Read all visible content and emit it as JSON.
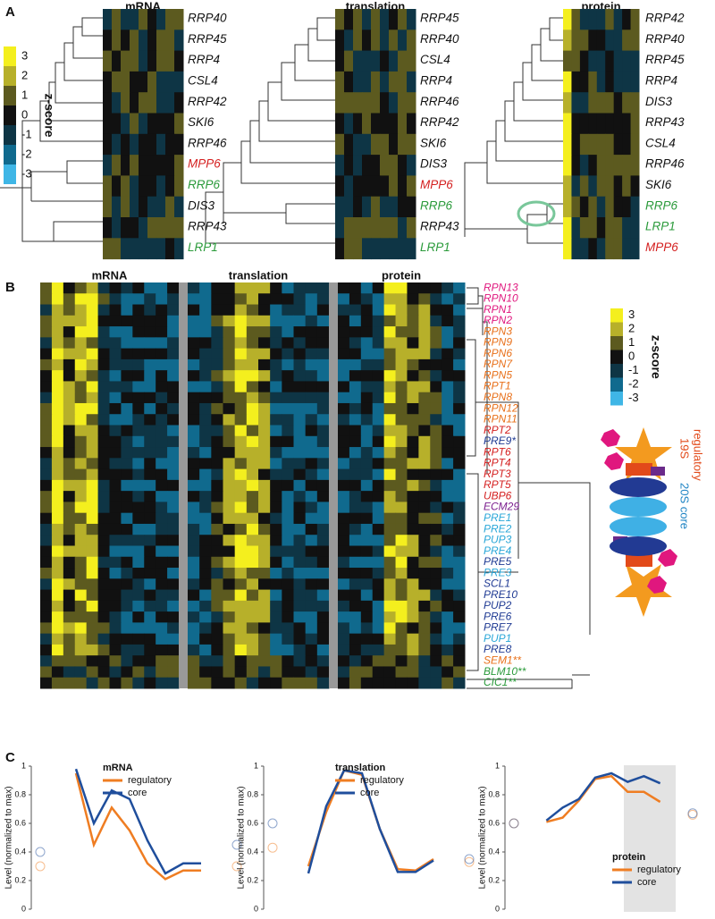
{
  "panel_a": {
    "label": "A",
    "colorbar": {
      "title": "z-score",
      "ticks": [
        3,
        2,
        1,
        0,
        -1,
        -2,
        -3
      ]
    },
    "heatmaps": [
      {
        "title": "mRNA",
        "genes": [
          {
            "label": "RRP40",
            "color": "#111111"
          },
          {
            "label": "RRP45",
            "color": "#111111"
          },
          {
            "label": "RRP4",
            "color": "#111111"
          },
          {
            "label": "CSL4",
            "color": "#111111"
          },
          {
            "label": "RRP42",
            "color": "#111111"
          },
          {
            "label": "SKI6",
            "color": "#111111"
          },
          {
            "label": "RRP46",
            "color": "#111111"
          },
          {
            "label": "MPP6",
            "color": "#d42020"
          },
          {
            "label": "RRP6",
            "color": "#2a9a3a"
          },
          {
            "label": "DIS3",
            "color": "#111111"
          },
          {
            "label": "RRP43",
            "color": "#111111"
          },
          {
            "label": "LRP1",
            "color": "#2a9a3a"
          }
        ]
      },
      {
        "title": "translation",
        "genes": [
          {
            "label": "RRP45",
            "color": "#111111"
          },
          {
            "label": "RRP40",
            "color": "#111111"
          },
          {
            "label": "CSL4",
            "color": "#111111"
          },
          {
            "label": "RRP4",
            "color": "#111111"
          },
          {
            "label": "RRP46",
            "color": "#111111"
          },
          {
            "label": "RRP42",
            "color": "#111111"
          },
          {
            "label": "SKI6",
            "color": "#111111"
          },
          {
            "label": "DIS3",
            "color": "#111111"
          },
          {
            "label": "MPP6",
            "color": "#d42020"
          },
          {
            "label": "RRP6",
            "color": "#2a9a3a"
          },
          {
            "label": "RRP43",
            "color": "#111111"
          },
          {
            "label": "LRP1",
            "color": "#2a9a3a"
          }
        ]
      },
      {
        "title": "protein",
        "genes": [
          {
            "label": "RRP42",
            "color": "#111111"
          },
          {
            "label": "RRP40",
            "color": "#111111"
          },
          {
            "label": "RRP45",
            "color": "#111111"
          },
          {
            "label": "RRP4",
            "color": "#111111"
          },
          {
            "label": "DIS3",
            "color": "#111111"
          },
          {
            "label": "RRP43",
            "color": "#111111"
          },
          {
            "label": "CSL4",
            "color": "#111111"
          },
          {
            "label": "RRP46",
            "color": "#111111"
          },
          {
            "label": "SKI6",
            "color": "#111111"
          },
          {
            "label": "RRP6",
            "color": "#2a9a3a"
          },
          {
            "label": "LRP1",
            "color": "#2a9a3a"
          },
          {
            "label": "MPP6",
            "color": "#d42020"
          }
        ]
      }
    ]
  },
  "panel_b": {
    "label": "B",
    "titles": [
      "mRNA",
      "translation",
      "protein"
    ],
    "colorbar": {
      "title": "z-score",
      "ticks": [
        3,
        2,
        1,
        0,
        -1,
        -2,
        -3
      ]
    },
    "regulatory_label": [
      "19S",
      "regulatory"
    ],
    "core_label": "20S core",
    "genes": [
      {
        "label": "RPN13",
        "color": "#e0177e"
      },
      {
        "label": "RPN10",
        "color": "#e0177e"
      },
      {
        "label": "RPN1",
        "color": "#e0177e"
      },
      {
        "label": "RPN2",
        "color": "#e0177e"
      },
      {
        "label": "RPN3",
        "color": "#e8701a"
      },
      {
        "label": "RPN9",
        "color": "#e8701a"
      },
      {
        "label": "RPN6",
        "color": "#e8701a"
      },
      {
        "label": "RPN7",
        "color": "#e8701a"
      },
      {
        "label": "RPN5",
        "color": "#e8701a"
      },
      {
        "label": "RPT1",
        "color": "#e8701a"
      },
      {
        "label": "RPN8",
        "color": "#e8701a"
      },
      {
        "label": "RPN12",
        "color": "#e8701a"
      },
      {
        "label": "RPN11",
        "color": "#e8701a"
      },
      {
        "label": "RPT2",
        "color": "#d42020"
      },
      {
        "label": "PRE9*",
        "color": "#1f3a93"
      },
      {
        "label": "RPT6",
        "color": "#d42020"
      },
      {
        "label": "RPT4",
        "color": "#d42020"
      },
      {
        "label": "RPT3",
        "color": "#d42020"
      },
      {
        "label": "RPT5",
        "color": "#d42020"
      },
      {
        "label": "UBP6",
        "color": "#d42020"
      },
      {
        "label": "ECM29",
        "color": "#7b1f8f"
      },
      {
        "label": "PRE1",
        "color": "#2aa7d8"
      },
      {
        "label": "PRE2",
        "color": "#2aa7d8"
      },
      {
        "label": "PUP3",
        "color": "#2aa7d8"
      },
      {
        "label": "PRE4",
        "color": "#2aa7d8"
      },
      {
        "label": "PRE5",
        "color": "#1f3a93"
      },
      {
        "label": "PRE3",
        "color": "#2aa7d8"
      },
      {
        "label": "SCL1",
        "color": "#1f3a93"
      },
      {
        "label": "PRE10",
        "color": "#1f3a93"
      },
      {
        "label": "PUP2",
        "color": "#1f3a93"
      },
      {
        "label": "PRE6",
        "color": "#1f3a93"
      },
      {
        "label": "PRE7",
        "color": "#1f3a93"
      },
      {
        "label": "PUP1",
        "color": "#2aa7d8"
      },
      {
        "label": "PRE8",
        "color": "#1f3a93"
      },
      {
        "label": "SEM1**",
        "color": "#e8701a"
      },
      {
        "label": "BLM10**",
        "color": "#2a9a3a"
      },
      {
        "label": "CIC1**",
        "color": "#2a9a3a"
      }
    ]
  },
  "panel_c_label": "C",
  "chart_data": [
    {
      "type": "line",
      "title": "mRNA",
      "ylabel": "Level (normalized to max)",
      "legend": "upper right",
      "categories": [
        null,
        null,
        null,
        null,
        null,
        null,
        null,
        null,
        null,
        null,
        null,
        null
      ],
      "series": [
        {
          "name": "regulatory",
          "color": "#ef7d22",
          "values": [
            0.3,
            null,
            0.95,
            0.45,
            0.71,
            0.55,
            0.32,
            0.21,
            0.27,
            0.27,
            null,
            0.3
          ]
        },
        {
          "name": "core",
          "color": "#1f4e9c",
          "values": [
            0.4,
            null,
            0.98,
            0.6,
            0.83,
            0.77,
            0.48,
            0.25,
            0.32,
            0.32,
            null,
            0.45
          ]
        }
      ],
      "ylim": [
        0,
        1
      ],
      "yticks": [
        0,
        0.2,
        0.4,
        0.6,
        0.8,
        1
      ]
    },
    {
      "type": "line",
      "title": "translation",
      "ylabel": "Level (normalized to max)",
      "legend": "upper right",
      "categories": [
        null,
        null,
        null,
        null,
        null,
        null,
        null,
        null,
        null,
        null,
        null,
        null
      ],
      "series": [
        {
          "name": "regulatory",
          "color": "#ef7d22",
          "values": [
            0.43,
            null,
            0.3,
            0.68,
            0.97,
            0.94,
            0.56,
            0.28,
            0.27,
            0.35,
            null,
            0.33
          ]
        },
        {
          "name": "core",
          "color": "#1f4e9c",
          "values": [
            0.6,
            null,
            0.25,
            0.72,
            0.97,
            0.95,
            0.56,
            0.26,
            0.26,
            0.34,
            null,
            0.35
          ]
        }
      ],
      "ylim": [
        0,
        1
      ],
      "yticks": [
        0,
        0.2,
        0.4,
        0.6,
        0.8,
        1
      ]
    },
    {
      "type": "line",
      "title": "protein",
      "ylabel": "Level (normalized to max)",
      "legend": "lower right",
      "categories": [
        null,
        null,
        null,
        null,
        null,
        null,
        null,
        null,
        null,
        null,
        null,
        null
      ],
      "series": [
        {
          "name": "regulatory",
          "color": "#ef7d22",
          "values": [
            0.6,
            null,
            0.61,
            0.64,
            0.76,
            0.91,
            0.93,
            0.82,
            0.82,
            0.75,
            null,
            0.66
          ]
        },
        {
          "name": "core",
          "color": "#1f4e9c",
          "values": [
            0.6,
            null,
            0.62,
            0.71,
            0.77,
            0.92,
            0.95,
            0.89,
            0.93,
            0.88,
            null,
            0.67
          ]
        }
      ],
      "ylim": [
        0,
        1
      ],
      "yticks": [
        0,
        0.2,
        0.4,
        0.6,
        0.8,
        1
      ]
    }
  ]
}
